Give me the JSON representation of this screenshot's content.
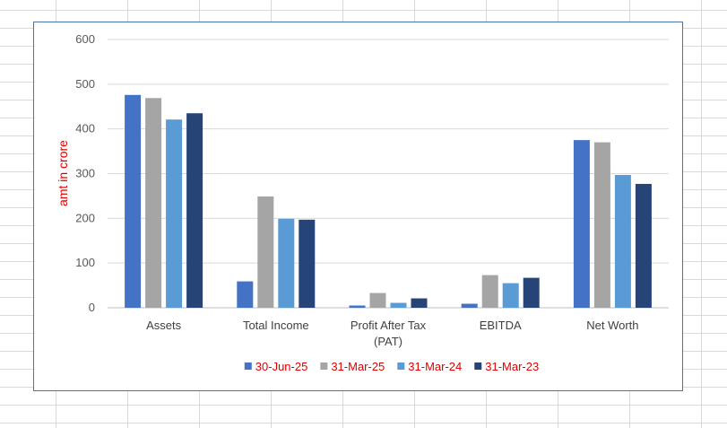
{
  "chart_data": {
    "type": "bar",
    "title": "",
    "xlabel": "",
    "ylabel": "amt in crore",
    "ylim": [
      0,
      600
    ],
    "yticks": [
      0,
      100,
      200,
      300,
      400,
      500,
      600
    ],
    "grid": true,
    "legend_position": "bottom",
    "categories": [
      [
        "Assets"
      ],
      [
        "Total Income"
      ],
      [
        "Profit After Tax",
        "(PAT)"
      ],
      [
        "EBITDA"
      ],
      [
        "Net Worth"
      ]
    ],
    "series": [
      {
        "name": "30-Jun-25",
        "color": "#4472c4",
        "values": [
          476,
          59,
          5,
          9,
          375
        ]
      },
      {
        "name": "31-Mar-25",
        "color": "#a5a5a5",
        "values": [
          469,
          249,
          33,
          73,
          370
        ]
      },
      {
        "name": "31-Mar-24",
        "color": "#5b9bd5",
        "values": [
          421,
          199,
          11,
          55,
          297
        ]
      },
      {
        "name": "31-Mar-23",
        "color": "#264478",
        "values": [
          435,
          197,
          21,
          67,
          277
        ]
      }
    ]
  }
}
